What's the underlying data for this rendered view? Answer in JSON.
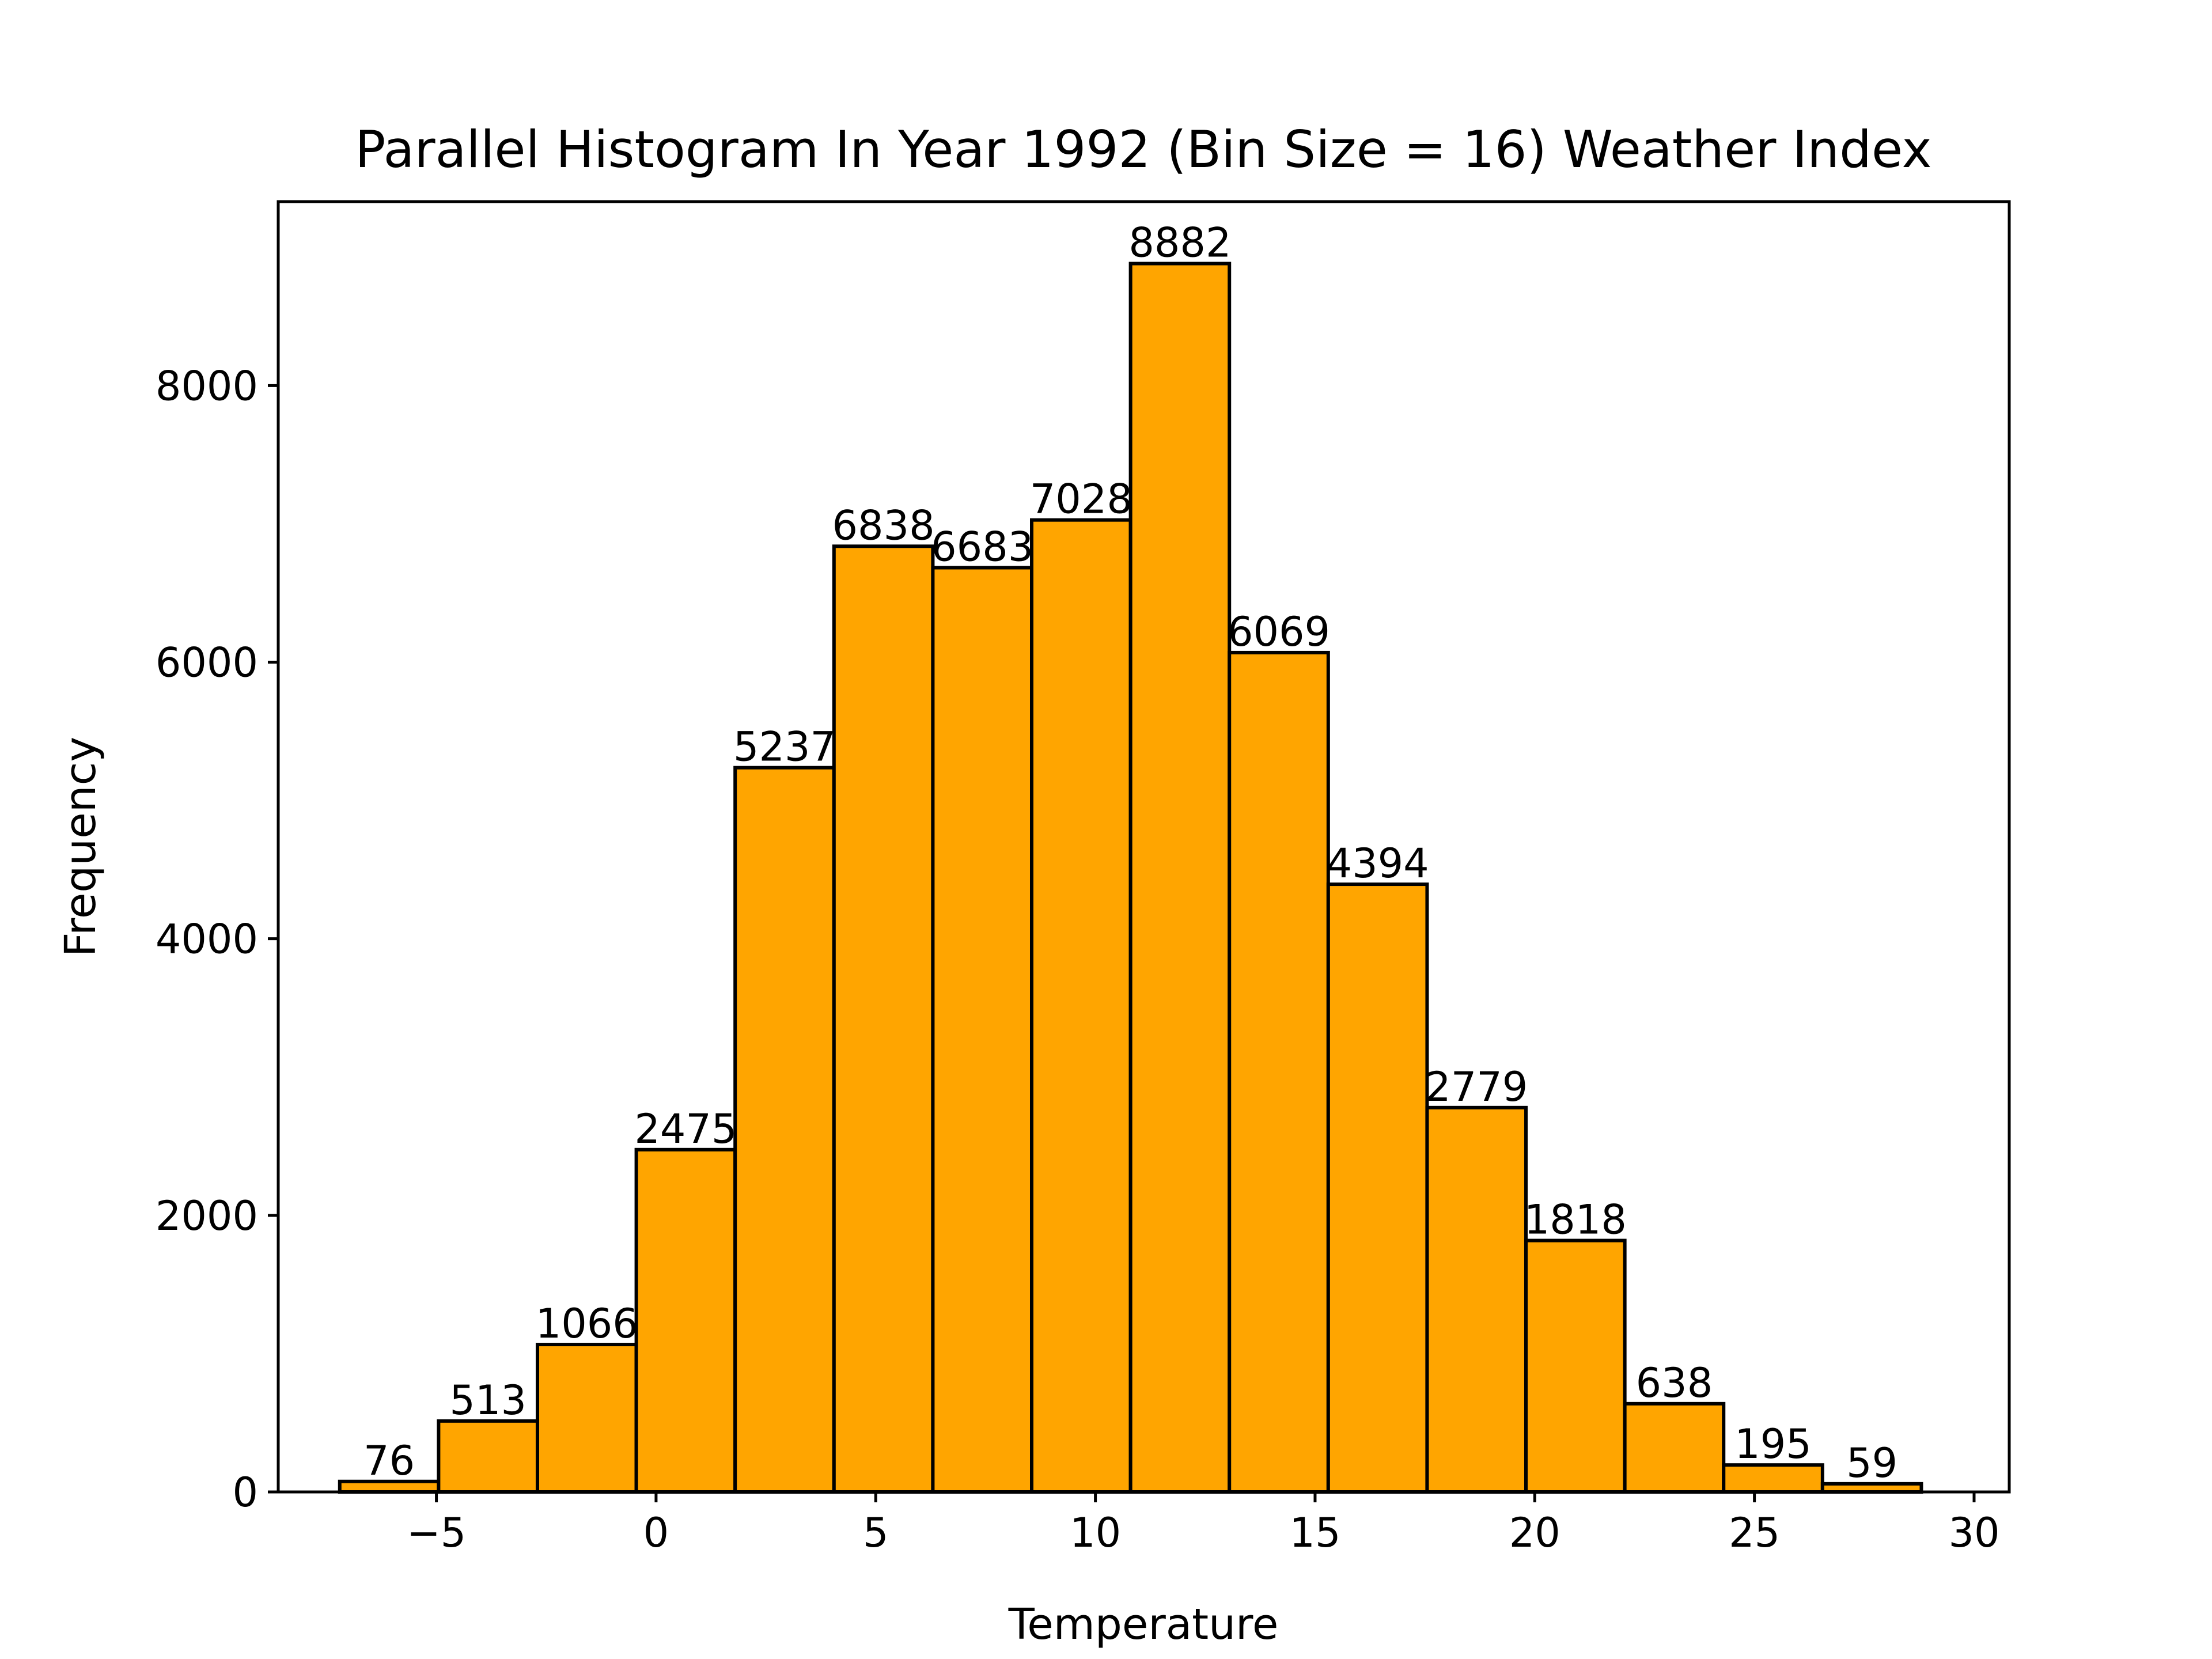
{
  "chart_data": {
    "type": "bar",
    "title": "Parallel Histogram In Year 1992 (Bin Size = 16) Weather Index",
    "xlabel": "Temperature",
    "ylabel": "Frequency",
    "bar_color": "#ffa500",
    "edge_color": "#000000",
    "bin_edges": [
      -7.2,
      -4.95,
      -2.7,
      -0.45,
      1.8,
      4.05,
      6.3,
      8.55,
      10.8,
      13.05,
      15.3,
      17.55,
      19.8,
      22.05,
      24.3,
      26.55,
      28.8
    ],
    "values": [
      76,
      513,
      1066,
      2475,
      5237,
      6838,
      6683,
      7028,
      8882,
      6069,
      4394,
      2779,
      1818,
      638,
      195,
      59
    ],
    "value_labels": [
      "76",
      "513",
      "1066",
      "2475",
      "5237",
      "6838",
      "6683",
      "7028",
      "8882",
      "6069",
      "4394",
      "2779",
      "1818",
      "638",
      "195",
      "59"
    ],
    "xlim": [
      -8.6,
      30.8
    ],
    "ylim": [
      0,
      9330
    ],
    "x_ticks": [
      -5,
      0,
      5,
      10,
      15,
      20,
      25,
      30
    ],
    "x_tick_labels": [
      "−5",
      "0",
      "5",
      "10",
      "15",
      "20",
      "25",
      "30"
    ],
    "y_ticks": [
      0,
      2000,
      4000,
      6000,
      8000
    ],
    "y_tick_labels": [
      "0",
      "2000",
      "4000",
      "6000",
      "8000"
    ],
    "grid": false,
    "legend": "none"
  }
}
